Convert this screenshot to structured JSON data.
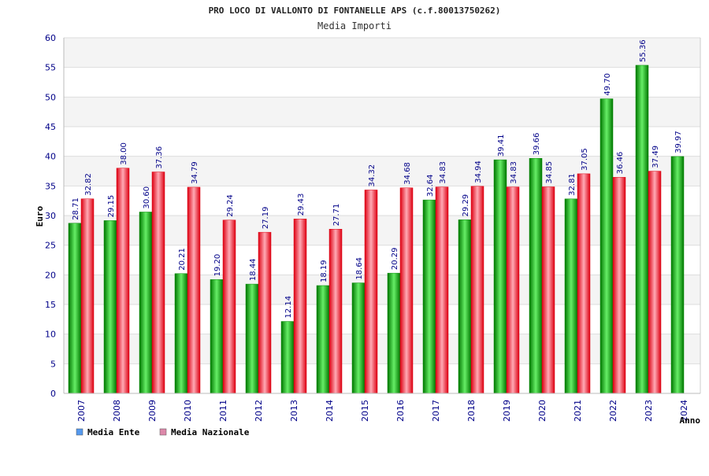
{
  "chart_data": {
    "type": "bar",
    "title": "PRO LOCO DI VALLONTO DI FONTANELLE APS (c.f.80013750262)",
    "subtitle": "Media Importi",
    "xlabel": "Anno",
    "ylabel": "Euro",
    "ylim": [
      0,
      60
    ],
    "ytick_step": 5,
    "grid": true,
    "legend_position": "bottom-left",
    "categories": [
      "2007",
      "2008",
      "2009",
      "2010",
      "2011",
      "2012",
      "2013",
      "2014",
      "2015",
      "2016",
      "2017",
      "2018",
      "2019",
      "2020",
      "2021",
      "2022",
      "2023",
      "2024"
    ],
    "series": [
      {
        "name": "Media Ente",
        "values": [
          28.71,
          29.15,
          30.6,
          20.21,
          19.2,
          18.44,
          12.14,
          18.19,
          18.64,
          20.29,
          32.64,
          29.29,
          39.41,
          39.66,
          32.81,
          49.7,
          55.36,
          39.97
        ],
        "labels": [
          "28.71",
          "29.15",
          "30.60",
          "20.21",
          "19.20",
          "18.44",
          "12.14",
          "18.19",
          "18.64",
          "20.29",
          "32.64",
          "29.29",
          "39.41",
          "39.66",
          "32.81",
          "49.70",
          "55.36",
          "39.97"
        ],
        "legend_color": "#5599ee"
      },
      {
        "name": "Media Nazionale",
        "values": [
          32.82,
          38.0,
          37.36,
          34.79,
          29.24,
          27.19,
          29.43,
          27.71,
          34.32,
          34.68,
          34.83,
          34.94,
          34.83,
          34.85,
          37.05,
          36.46,
          37.49,
          null
        ],
        "labels": [
          "32.82",
          "38.00",
          "37.36",
          "34.79",
          "29.24",
          "27.19",
          "29.43",
          "27.71",
          "34.32",
          "34.68",
          "34.83",
          "34.94",
          "34.83",
          "34.85",
          "37.05",
          "36.46",
          "37.49",
          ""
        ],
        "legend_color": "#dd88aa"
      }
    ]
  },
  "colors": {
    "green_dark": "#008800",
    "green_light": "#66ee66",
    "red_dark": "#dd0011",
    "red_light": "#ff9aa8",
    "axis_text": "#000088",
    "band": "#f4f4f4",
    "gridline": "#dddddd"
  }
}
